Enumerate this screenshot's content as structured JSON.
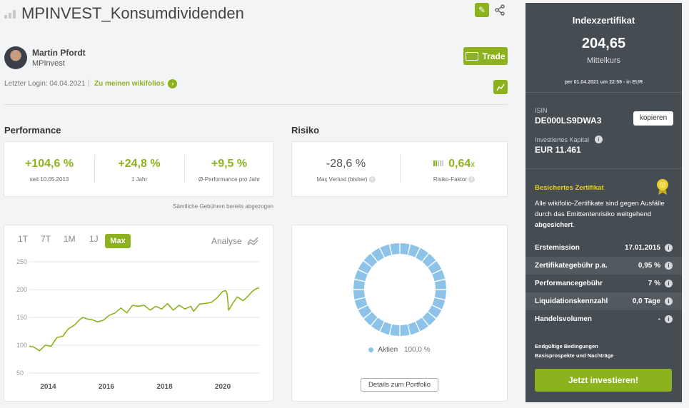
{
  "header": {
    "title": "MPINVEST_Konsumdividenden"
  },
  "trader": {
    "name": "Martin Pfordt",
    "handle": "MPInvest",
    "last_login": "Letzter Login: 04.04.2021",
    "link": "Zu meinen wikifolios"
  },
  "actions": {
    "trade_label": "Trade"
  },
  "performance": {
    "heading": "Performance",
    "items": [
      {
        "value": "+104,6 %",
        "label": "seit 10.05.2013"
      },
      {
        "value": "+24,8 %",
        "label": "1 Jahr"
      },
      {
        "value": "+9,5 %",
        "label": "Ø-Performance pro Jahr"
      }
    ],
    "note": "Sämtliche Gebühren bereits abgezogen"
  },
  "risk": {
    "heading": "Risiko",
    "max_loss_value": "-28,6 %",
    "max_loss_label": "Max Verlust (bisher)",
    "factor_value": "0,64",
    "factor_suffix": "x",
    "factor_label": "Risiko-Faktor"
  },
  "chart_tabs": [
    "1T",
    "7T",
    "1M",
    "1J",
    "Max"
  ],
  "chart_active": "Max",
  "analyse_label": "Analyse",
  "chart_data": {
    "type": "line",
    "x_ticks": [
      "2014",
      "2016",
      "2018",
      "2020"
    ],
    "y_ticks": [
      50,
      100,
      150,
      200,
      250
    ],
    "ylim": [
      50,
      250
    ],
    "xlim": [
      2013.35,
      2021.25
    ],
    "series": [
      {
        "color": "#8cb21e",
        "x": [
          2013.35,
          2013.5,
          2013.7,
          2013.9,
          2014.1,
          2014.3,
          2014.5,
          2014.7,
          2014.9,
          2015.1,
          2015.2,
          2015.35,
          2015.5,
          2015.7,
          2015.9,
          2016.1,
          2016.3,
          2016.5,
          2016.7,
          2016.9,
          2017.1,
          2017.3,
          2017.5,
          2017.7,
          2017.9,
          2018.1,
          2018.3,
          2018.5,
          2018.7,
          2018.9,
          2019.0,
          2019.2,
          2019.4,
          2019.6,
          2019.8,
          2020.0,
          2020.1,
          2020.15,
          2020.2,
          2020.25,
          2020.35,
          2020.5,
          2020.7,
          2020.9,
          2021.0,
          2021.15,
          2021.25
        ],
        "values": [
          100,
          95,
          92,
          98,
          100,
          112,
          118,
          128,
          138,
          145,
          152,
          145,
          148,
          140,
          147,
          152,
          160,
          165,
          160,
          170,
          172,
          170,
          165,
          168,
          167,
          173,
          165,
          170,
          167,
          168,
          163,
          172,
          177,
          175,
          187,
          195,
          200,
          190,
          165,
          165,
          178,
          185,
          182,
          188,
          198,
          200,
          205
        ]
      }
    ]
  },
  "donut": {
    "legend_label": "Aktien",
    "legend_value": "100,0 %",
    "color": "#8dc3e8"
  },
  "portfolio_button": "Details zum Portfolio",
  "side": {
    "title": "Indexzertifikat",
    "price": "204,65",
    "price_label": "Mittelkurs",
    "price_date": "per 01.04.2021 um 22:59 - in EUR",
    "isin_label": "ISIN",
    "isin": "DE000LS9DWA3",
    "copy_label": "kopieren",
    "capital_label": "Investiertes Kapital",
    "capital": "EUR 11.461",
    "secured_title": "Besichertes Zertifikat",
    "secured_text_1": "Alle wikifolio-Zertifikate sind gegen Ausfälle durch das Emittentenrisiko weitgehend",
    "secured_text_bold": "abgesichert",
    "secured_text_2": ".",
    "rows": [
      {
        "label": "Erstemission",
        "value": "17.01.2015"
      },
      {
        "label": "Zertifikategebühr p.a.",
        "value": "0,95 %"
      },
      {
        "label": "Performancegebühr",
        "value": "7 %"
      },
      {
        "label": "Liquidationskennzahl",
        "value": "0,0 Tage"
      },
      {
        "label": "Handelsvolumen",
        "value": "-"
      }
    ],
    "link1": "Endgültige Bedingungen",
    "link2": "Basisprospekte und Nachträge",
    "invest_button": "Jetzt investieren!"
  }
}
